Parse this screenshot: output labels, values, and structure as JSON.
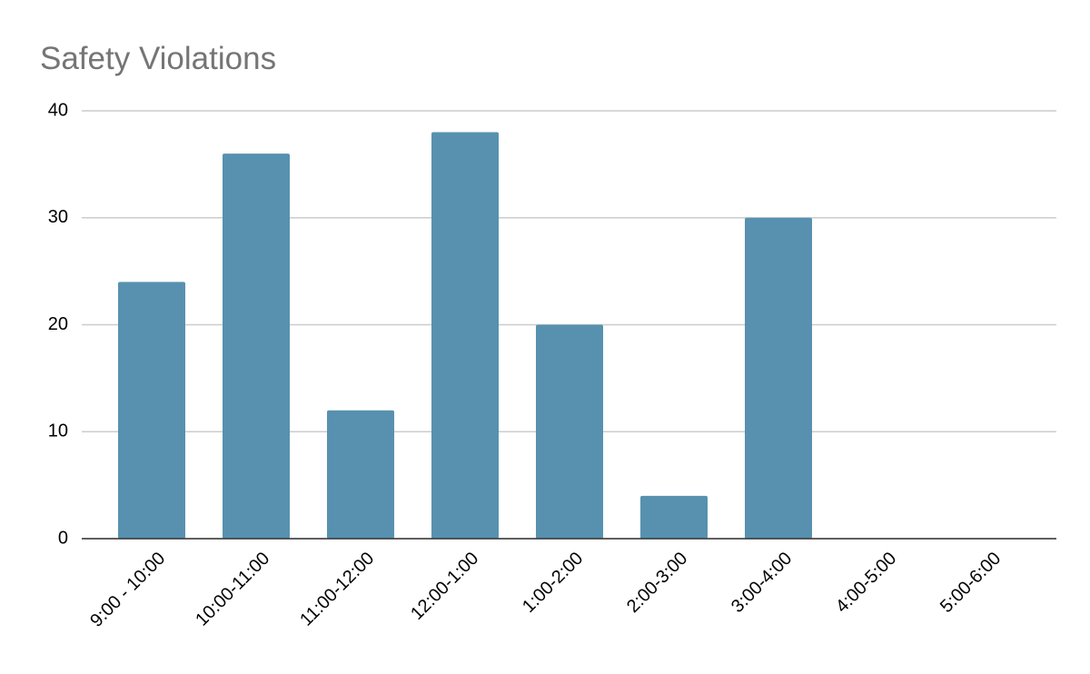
{
  "chart_data": {
    "type": "bar",
    "title": "Safety Violations",
    "categories": [
      "9:00 - 10:00",
      "10:00-11:00",
      "11:00-12:00",
      "12:00-1:00",
      "1:00-2:00",
      "2:00-3:00",
      "3:00-4:00",
      "4:00-5:00",
      "5:00-6:00"
    ],
    "values": [
      24,
      36,
      12,
      38,
      20,
      4,
      30,
      0,
      0
    ],
    "color": "#5791af",
    "ylim": [
      0,
      40
    ],
    "yticks": [
      0,
      10,
      20,
      30,
      40
    ],
    "grid": true
  }
}
